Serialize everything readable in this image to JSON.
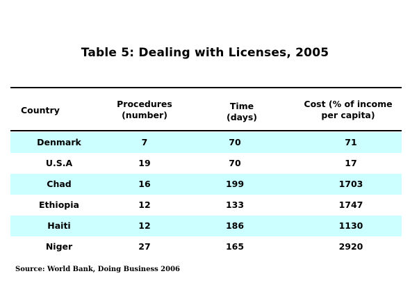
{
  "title": "Table 5: Dealing with Licenses, 2005",
  "headers": {
    "country": "Country",
    "procedures_line1": "Procedures",
    "procedures_line2": "(number)",
    "time_line1": "Time",
    "time_line2": "(days)",
    "cost_line1": "Cost (% of income",
    "cost_line2": "per capita)"
  },
  "rows": [
    {
      "country": "Denmark",
      "procedures": "7",
      "time": "70",
      "cost": "71",
      "shaded": true
    },
    {
      "country": "U.S.A",
      "procedures": "19",
      "time": "70",
      "cost": "17",
      "shaded": false
    },
    {
      "country": "Chad",
      "procedures": "16",
      "time": "199",
      "cost": "1703",
      "shaded": true
    },
    {
      "country": "Ethiopia",
      "procedures": "12",
      "time": "133",
      "cost": "1747",
      "shaded": false
    },
    {
      "country": "Haiti",
      "procedures": "12",
      "time": "186",
      "cost": "1130",
      "shaded": true
    },
    {
      "country": "Niger",
      "procedures": "27",
      "time": "165",
      "cost": "2920",
      "shaded": false
    }
  ],
  "colors": {
    "shade": "#ccffff",
    "rule": "#000000"
  },
  "source": "Source: World Bank, Doing Business 2006"
}
